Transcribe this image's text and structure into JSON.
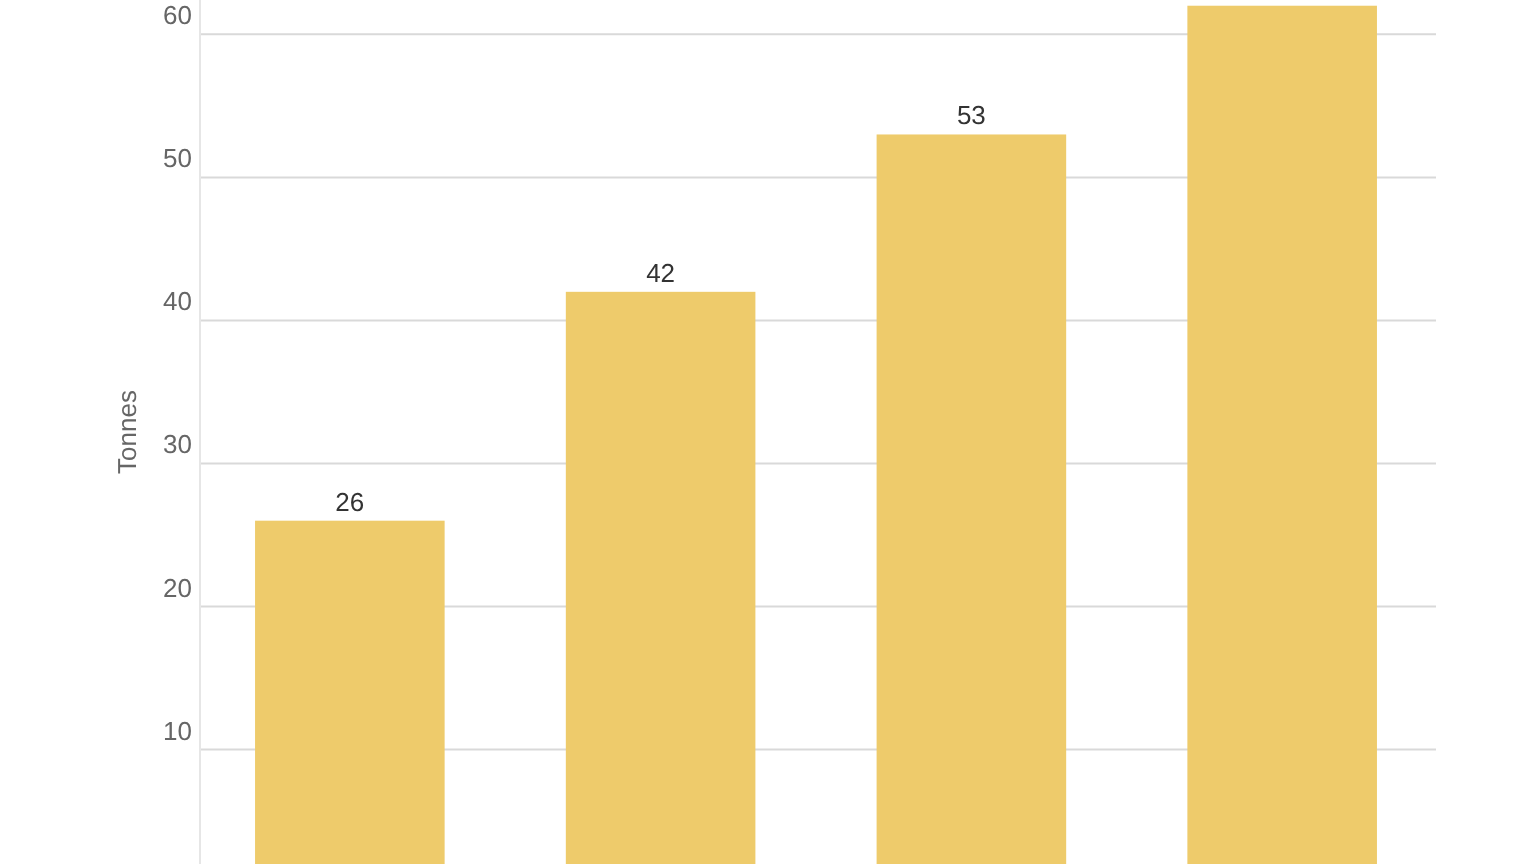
{
  "chart_data": {
    "type": "bar",
    "ylabel": "Tonnes",
    "categories": [
      null,
      null,
      null,
      null
    ],
    "values": [
      26,
      42,
      53,
      62
    ],
    "color": "#eecb6b",
    "value_labels": [
      "26",
      "42",
      "53",
      null
    ],
    "ylim": [
      2,
      62.4
    ],
    "yticks": [
      10,
      20,
      30,
      40,
      50,
      60
    ],
    "grid": "y"
  }
}
